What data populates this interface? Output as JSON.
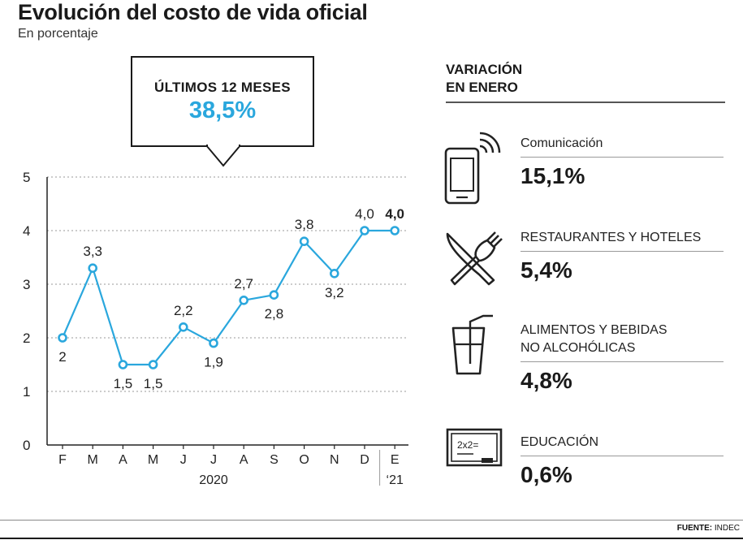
{
  "header": {
    "title": "Evolución del costo de vida oficial",
    "subtitle": "En porcentaje"
  },
  "callout": {
    "label": "ÚLTIMOS 12 MESES",
    "value": "38,5%"
  },
  "colors": {
    "line": "#2aa7dd",
    "callout_value": "#2aa7dd",
    "text": "#1a1a1a",
    "grid": "#9a9a9a"
  },
  "chart_data": {
    "type": "line",
    "title": "Evolución del costo de vida oficial",
    "subtitle": "En porcentaje",
    "categories": [
      "F",
      "M",
      "A",
      "M",
      "J",
      "J",
      "A",
      "S",
      "O",
      "N",
      "D",
      "E"
    ],
    "values": [
      2.0,
      3.3,
      1.5,
      1.5,
      2.2,
      1.9,
      2.7,
      2.8,
      3.8,
      3.2,
      4.0,
      4.0
    ],
    "labels": [
      "2",
      "3,3",
      "1,5",
      "1,5",
      "2,2",
      "1,9",
      "2,7",
      "2,8",
      "3,8",
      "3,2",
      "4,0",
      "4,0"
    ],
    "label_position": [
      "below",
      "above",
      "below",
      "below",
      "above",
      "below",
      "above",
      "below",
      "above",
      "below",
      "above",
      "above"
    ],
    "highlight_last": true,
    "yticks": [
      "0",
      "1",
      "2",
      "3",
      "4",
      "5"
    ],
    "ylim": [
      0,
      5
    ],
    "grid": "dotted horizontal",
    "year_labels": [
      {
        "text": "2020",
        "span": "F–D"
      },
      {
        "text": "‘21",
        "span": "E"
      }
    ],
    "xlabel": "",
    "ylabel": ""
  },
  "sidebar": {
    "heading_line1": "VARIACIÓN",
    "heading_line2": "EN ENERO",
    "items": [
      {
        "label": "Comunicación",
        "value": "15,1%",
        "icon": "smartphone-icon"
      },
      {
        "label": "RESTAURANTES Y HOTELES",
        "value": "5,4%",
        "icon": "fork-knife-icon"
      },
      {
        "label": "ALIMENTOS Y BEBIDAS",
        "label2": "NO ALCOHÓLICAS",
        "value": "4,8%",
        "icon": "glass-straw-icon"
      },
      {
        "label": "EDUCACIÓN",
        "value": "0,6%",
        "icon": "chalkboard-icon",
        "board_text": "2x2="
      }
    ]
  },
  "footer": {
    "source_label": "FUENTE:",
    "source_value": "INDEC"
  }
}
